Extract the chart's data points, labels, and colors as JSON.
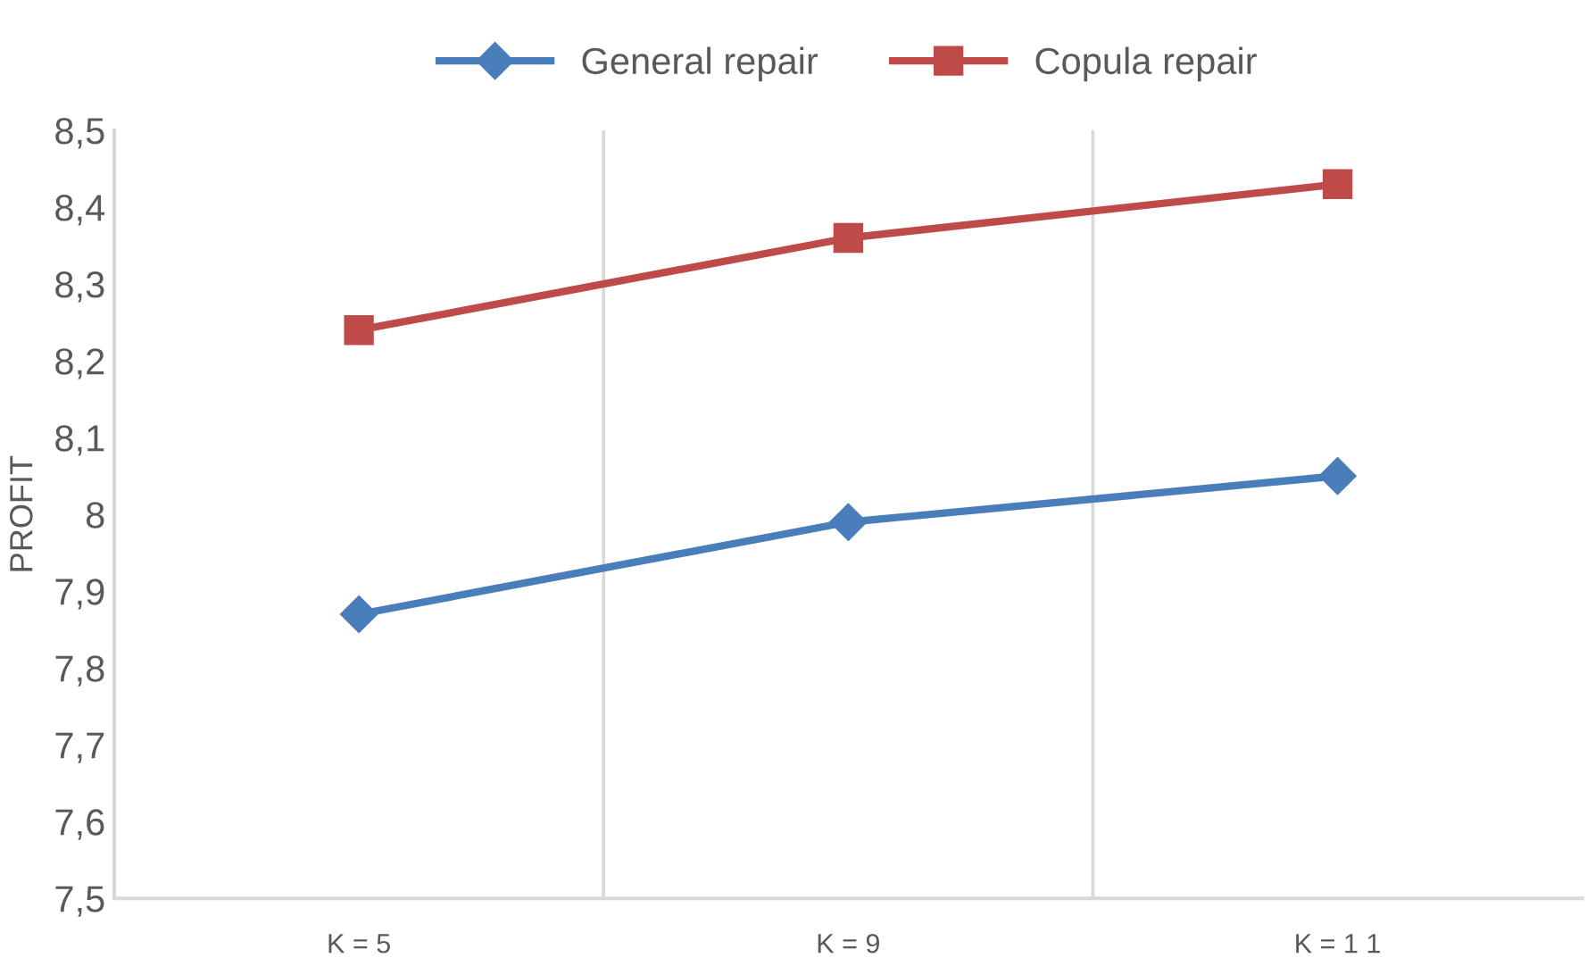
{
  "chart_data": {
    "type": "line",
    "ylabel": "PROFIT",
    "categories": [
      "K = 5",
      "K = 9",
      "K = 1 1"
    ],
    "series": [
      {
        "name": "General repair",
        "color": "#4a7ebb",
        "values": [
          7.87,
          7.99,
          8.05
        ],
        "marker": "diamond"
      },
      {
        "name": "Copula repair",
        "color": "#be4b48",
        "values": [
          8.24,
          8.36,
          8.43
        ],
        "marker": "square"
      }
    ],
    "ylim": [
      7.5,
      8.5
    ],
    "yticks": [
      {
        "value": 7.5,
        "label": "7,5"
      },
      {
        "value": 7.6,
        "label": "7,6"
      },
      {
        "value": 7.7,
        "label": "7,7"
      },
      {
        "value": 7.8,
        "label": "7,8"
      },
      {
        "value": 7.9,
        "label": "7,9"
      },
      {
        "value": 8,
        "label": "8"
      },
      {
        "value": 8.1,
        "label": "8,1"
      },
      {
        "value": 8.2,
        "label": "8,2"
      },
      {
        "value": 8.3,
        "label": "8,3"
      },
      {
        "value": 8.4,
        "label": "8,4"
      },
      {
        "value": 8.5,
        "label": "8,5"
      }
    ],
    "grid": "x",
    "legend": "top",
    "line_style": "solid"
  }
}
